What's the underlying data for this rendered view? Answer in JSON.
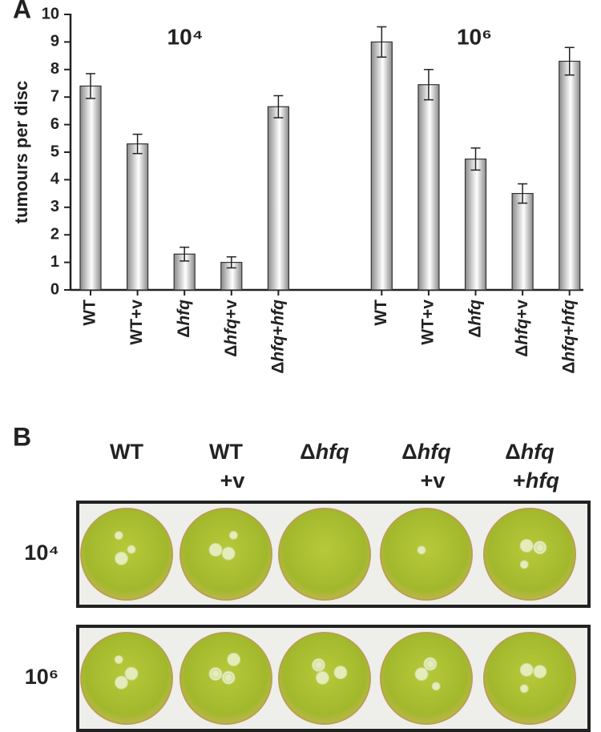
{
  "chart_data": {
    "type": "bar",
    "panel": "A",
    "ylabel": "tumours per disc",
    "categories": [
      "WT",
      "WT+v",
      "Δhfq",
      "Δhfq+v",
      "Δhfq+hfq",
      "WT",
      "WT+v",
      "Δhfq",
      "Δhfq+v",
      "Δhfq+hfq"
    ],
    "values": [
      7.4,
      5.3,
      1.3,
      1.0,
      6.65,
      9.0,
      7.45,
      4.75,
      3.5,
      8.3
    ],
    "errors": [
      0.45,
      0.35,
      0.25,
      0.2,
      0.4,
      0.55,
      0.55,
      0.4,
      0.35,
      0.5
    ],
    "annotations": [
      "10⁴",
      "10⁶"
    ],
    "color": "#8a8a8a",
    "ylim": [
      0,
      10
    ],
    "yticks": [
      0,
      1,
      2,
      3,
      4,
      5,
      6,
      7,
      8,
      9,
      10
    ]
  },
  "panel_b": {
    "panel": "B",
    "columns": [
      [
        "WT"
      ],
      [
        "WT",
        "+v"
      ],
      [
        "Δhfq"
      ],
      [
        "Δhfq",
        "+v"
      ],
      [
        "Δhfq",
        "+hfq"
      ]
    ],
    "rows": [
      "10⁴",
      "10⁶"
    ]
  }
}
